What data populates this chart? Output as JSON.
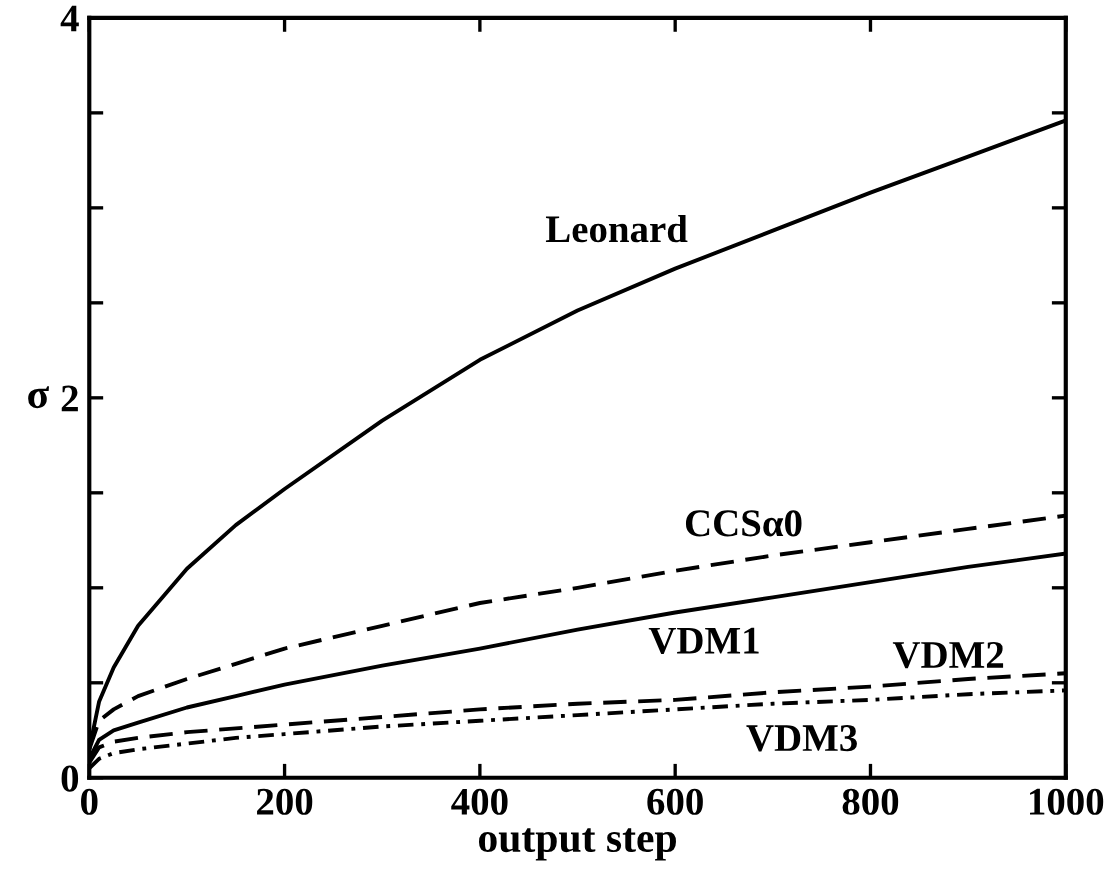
{
  "chart_data": {
    "type": "line",
    "xlabel": "output step",
    "ylabel": "σ",
    "x": [
      0,
      10,
      25,
      50,
      100,
      150,
      200,
      300,
      400,
      500,
      600,
      700,
      800,
      900,
      1000
    ],
    "xlim": [
      0,
      1000
    ],
    "ylim": [
      0,
      4
    ],
    "xticks": [
      0,
      200,
      400,
      600,
      800,
      1000
    ],
    "yticks": [
      0,
      {
        "value": 0.5,
        "label": null
      },
      {
        "value": 1,
        "label": null
      },
      {
        "value": 1.5,
        "label": null
      },
      2,
      {
        "value": 2.5,
        "label": null
      },
      {
        "value": 3,
        "label": null
      },
      {
        "value": 3.5,
        "label": null
      },
      4
    ],
    "grid": false,
    "legend": false,
    "marker": "none",
    "series": [
      {
        "name": "Leonard",
        "color": "#000000",
        "line_style": "solid",
        "values": [
          0.15,
          0.4,
          0.58,
          0.8,
          1.1,
          1.33,
          1.52,
          1.88,
          2.2,
          2.46,
          2.68,
          2.88,
          3.08,
          3.27,
          3.46
        ]
      },
      {
        "name": "CCSα0",
        "color": "#000000",
        "line_style": "dashed",
        "values": [
          0.15,
          0.3,
          0.36,
          0.43,
          0.52,
          0.6,
          0.68,
          0.8,
          0.92,
          1.0,
          1.09,
          1.17,
          1.24,
          1.31,
          1.38
        ]
      },
      {
        "name": "VDM1",
        "color": "#000000",
        "line_style": "solid",
        "values": [
          0.1,
          0.2,
          0.25,
          0.29,
          0.37,
          0.43,
          0.49,
          0.59,
          0.68,
          0.78,
          0.87,
          0.95,
          1.03,
          1.11,
          1.18
        ]
      },
      {
        "name": "VDM2",
        "color": "#000000",
        "line_style": "dashed",
        "values": [
          0.08,
          0.16,
          0.19,
          0.21,
          0.24,
          0.26,
          0.28,
          0.32,
          0.36,
          0.39,
          0.41,
          0.45,
          0.48,
          0.52,
          0.55
        ]
      },
      {
        "name": "VDM3",
        "color": "#000000",
        "line_style": "dotted",
        "values": [
          0.05,
          0.1,
          0.13,
          0.15,
          0.18,
          0.21,
          0.23,
          0.27,
          0.3,
          0.33,
          0.36,
          0.39,
          0.41,
          0.44,
          0.46
        ]
      }
    ]
  }
}
